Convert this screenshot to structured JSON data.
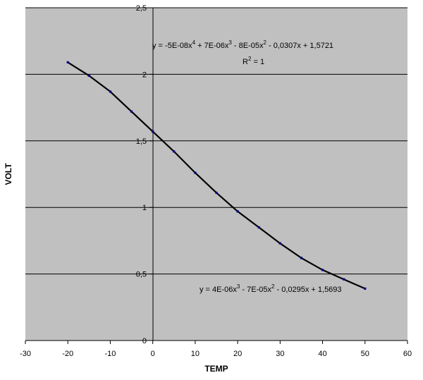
{
  "chart_data": {
    "type": "scatter",
    "title": "",
    "xlabel": "TEMP",
    "ylabel": "VOLT",
    "xlim": [
      -30,
      60
    ],
    "ylim": [
      0,
      2.5
    ],
    "x_ticks": [
      "-30",
      "-20",
      "-10",
      "0",
      "10",
      "20",
      "30",
      "40",
      "50",
      "60"
    ],
    "y_ticks": [
      "0",
      "0,5",
      "1",
      "1,5",
      "2",
      "2,5"
    ],
    "grid": "horizontal",
    "background": "#c0c0c0",
    "line_color": "#000000",
    "marker_color": "#000080",
    "series": [
      {
        "x": [
          -20,
          -15,
          -10,
          -5,
          0,
          5,
          10,
          15,
          20,
          25,
          30,
          35,
          40,
          45,
          50
        ],
        "y": [
          2.09,
          1.99,
          1.87,
          1.72,
          1.57,
          1.42,
          1.26,
          1.11,
          0.97,
          0.85,
          0.73,
          0.62,
          0.53,
          0.46,
          0.39
        ]
      }
    ],
    "annotations": {
      "eq1_pre": "y = -5E-08x",
      "eq1_p4": "4",
      "eq1_mid1": " + 7E-06x",
      "eq1_p3": "3",
      "eq1_mid2": " - 8E-05x",
      "eq1_p2": "2",
      "eq1_post": " - 0,0307x + 1,5721",
      "r2_pre": "R",
      "r2_p": "2",
      "r2_post": " = 1",
      "eq2_pre": "y = 4E-06x",
      "eq2_p3": "3",
      "eq2_mid": " - 7E-05x",
      "eq2_p2": "2",
      "eq2_post": " - 0,0295x + 1,5693"
    }
  }
}
